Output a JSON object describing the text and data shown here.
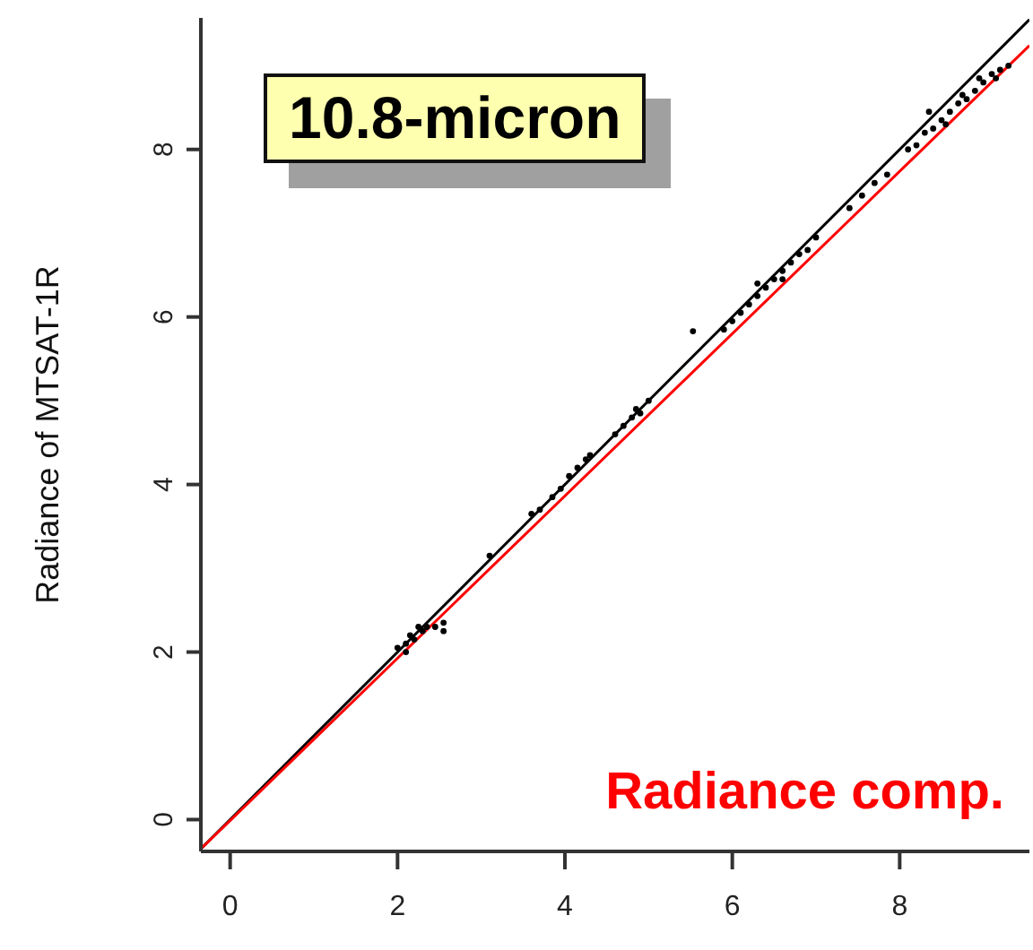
{
  "chart_data": {
    "type": "scatter",
    "title": "10.8-micron",
    "ylabel": "Radiance of MTSAT-1R",
    "annotations": [
      "Radiance comp."
    ],
    "xlim": [
      -0.35,
      9.55
    ],
    "ylim": [
      -0.38,
      9.57
    ],
    "xticks": [
      0,
      2,
      4,
      6,
      8
    ],
    "yticks": [
      0,
      2,
      4,
      6,
      8
    ],
    "grid": false,
    "legend": false,
    "series": [
      {
        "marker": "circle",
        "color": "#000000",
        "x": [
          2.0,
          2.1,
          2.15,
          2.2,
          2.3,
          2.35,
          2.1,
          2.45,
          2.55,
          2.55,
          2.25,
          3.1,
          3.6,
          3.7,
          3.85,
          3.95,
          4.05,
          4.15,
          4.25,
          4.3,
          4.6,
          4.7,
          4.8,
          4.9,
          5.0,
          4.85,
          5.53,
          5.9,
          6.0,
          6.1,
          6.2,
          6.3,
          6.4,
          6.5,
          6.6,
          6.7,
          6.8,
          6.9,
          7.0,
          6.3,
          6.6,
          7.4,
          7.55,
          7.7,
          7.85,
          8.1,
          8.2,
          8.3,
          8.4,
          8.5,
          8.6,
          8.7,
          8.8,
          8.9,
          9.0,
          9.1,
          9.2,
          9.3,
          8.35,
          8.55,
          8.75,
          8.95,
          9.15
        ],
        "values": [
          2.05,
          2.1,
          2.2,
          2.15,
          2.25,
          2.3,
          2.0,
          2.3,
          2.25,
          2.35,
          2.3,
          3.15,
          3.65,
          3.7,
          3.85,
          3.95,
          4.1,
          4.2,
          4.3,
          4.35,
          4.6,
          4.7,
          4.8,
          4.85,
          5.0,
          4.9,
          5.83,
          5.85,
          5.95,
          6.05,
          6.15,
          6.25,
          6.35,
          6.45,
          6.55,
          6.65,
          6.75,
          6.8,
          6.95,
          6.4,
          6.45,
          7.3,
          7.45,
          7.6,
          7.7,
          8.0,
          8.05,
          8.2,
          8.25,
          8.35,
          8.45,
          8.55,
          8.6,
          8.7,
          8.8,
          8.9,
          8.95,
          9.0,
          8.45,
          8.3,
          8.65,
          8.85,
          8.85
        ]
      },
      {
        "type": "line",
        "marker": "none",
        "color": "#000000",
        "x": [
          -0.35,
          9.55
        ],
        "values": [
          -0.35,
          9.55
        ]
      },
      {
        "type": "line",
        "marker": "none",
        "color": "#ff0000",
        "x": [
          -0.35,
          9.55
        ],
        "values": [
          -0.35,
          9.24
        ]
      }
    ]
  }
}
